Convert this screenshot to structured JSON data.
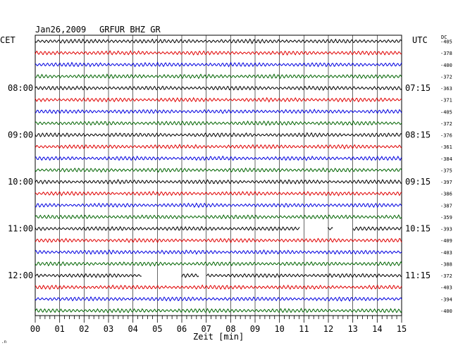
{
  "header": {
    "date": "Jan26,2009",
    "station": "GRFUR BHZ GR",
    "left_tz": "CET",
    "right_tz": "UTC",
    "dc_label": "DC"
  },
  "chart_data": {
    "type": "line",
    "title": "Jan26,2009   GRFUR BHZ GR",
    "xlabel": "Zeit [min]",
    "xlim": [
      0,
      15
    ],
    "x_ticks": [
      "00",
      "01",
      "02",
      "03",
      "04",
      "05",
      "06",
      "07",
      "08",
      "09",
      "10",
      "11",
      "12",
      "13",
      "14",
      "15"
    ],
    "trace_colors": [
      "#000000",
      "#e00000",
      "#0000e0",
      "#006400"
    ],
    "left_time_labels": [
      {
        "row": 4,
        "label": "08:00"
      },
      {
        "row": 8,
        "label": "09:00"
      },
      {
        "row": 12,
        "label": "10:00"
      },
      {
        "row": 16,
        "label": "11:00"
      },
      {
        "row": 20,
        "label": "12:00"
      }
    ],
    "right_time_labels": [
      {
        "row": 4,
        "label": "07:15"
      },
      {
        "row": 8,
        "label": "08:15"
      },
      {
        "row": 12,
        "label": "09:15"
      },
      {
        "row": 16,
        "label": "10:15"
      },
      {
        "row": 20,
        "label": "11:15"
      }
    ],
    "dc_offsets": [
      "-405",
      "-378",
      "-400",
      "-372",
      "-363",
      "-371",
      "-405",
      "-372",
      "-376",
      "-361",
      "-384",
      "-375",
      "-397",
      "-386",
      "-387",
      "-359",
      "-393",
      "-409",
      "-403",
      "-388",
      "-372",
      "-403",
      "-394",
      "-400"
    ],
    "gaps": [
      {
        "row": 16,
        "from_min": 10.85,
        "to_min": 11.95
      },
      {
        "row": 16,
        "from_min": 12.2,
        "to_min": 13.0
      },
      {
        "row": 20,
        "from_min": 4.35,
        "to_min": 6.0
      },
      {
        "row": 20,
        "from_min": 6.7,
        "to_min": 7.0
      }
    ]
  }
}
